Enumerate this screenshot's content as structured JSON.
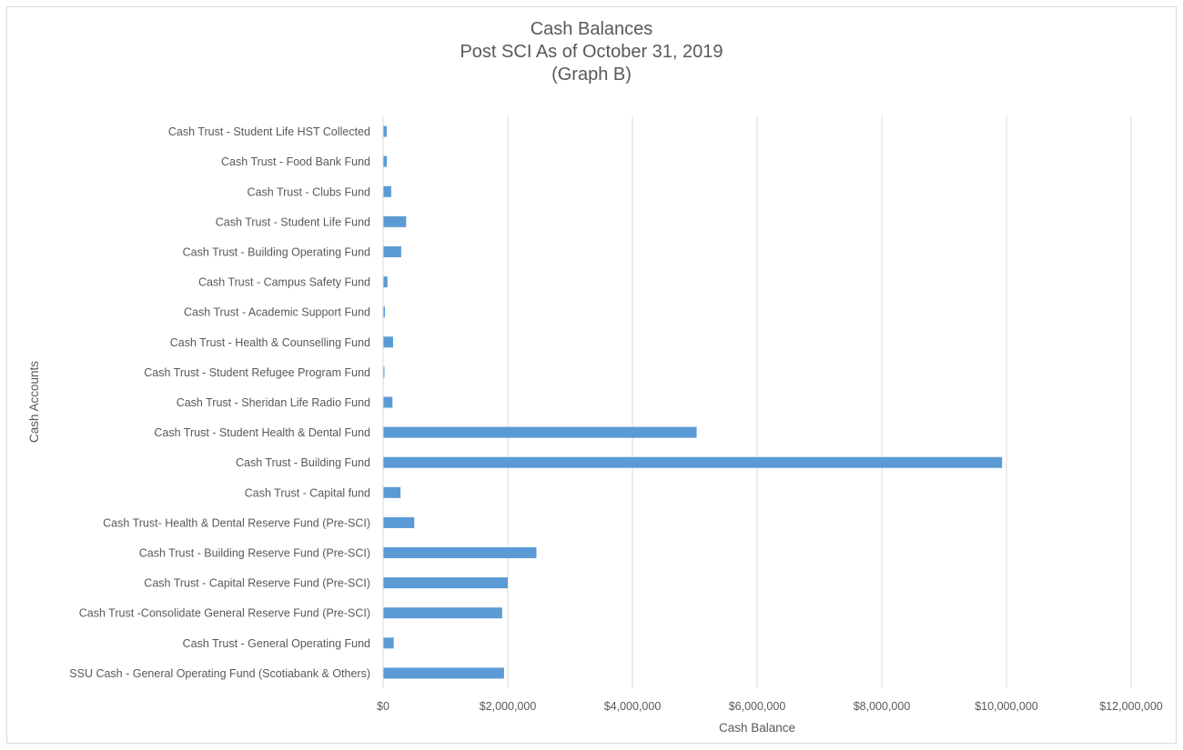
{
  "chart_data": {
    "type": "bar",
    "orientation": "horizontal",
    "title": [
      "Cash Balances",
      "Post SCI As of October 31, 2019",
      "(Graph B)"
    ],
    "xlabel": "Cash Balance",
    "ylabel": "Cash Accounts",
    "xlim": [
      0,
      12000000
    ],
    "xticks": [
      0,
      2000000,
      4000000,
      6000000,
      8000000,
      10000000,
      12000000
    ],
    "xtick_labels": [
      "$0",
      "$2,000,000",
      "$4,000,000",
      "$6,000,000",
      "$8,000,000",
      "$10,000,000",
      "$12,000,000"
    ],
    "grid": "vertical",
    "bar_color": "#5b9bd5",
    "categories": [
      "Cash Trust - Student Life HST Collected",
      "Cash Trust - Food Bank Fund",
      "Cash Trust - Clubs Fund",
      "Cash Trust - Student Life Fund",
      "Cash Trust - Building Operating Fund",
      "Cash Trust - Campus Safety Fund",
      "Cash Trust - Academic Support Fund",
      "Cash Trust - Health & Counselling Fund",
      "Cash Trust - Student Refugee Program Fund",
      "Cash Trust - Sheridan Life Radio Fund",
      "Cash Trust - Student Health & Dental Fund",
      "Cash Trust - Building Fund",
      "Cash Trust - Capital fund",
      "Cash Trust- Health & Dental Reserve Fund (Pre-SCI)",
      "Cash Trust - Building Reserve Fund (Pre-SCI)",
      "Cash Trust - Capital Reserve Fund (Pre-SCI)",
      "Cash Trust -Consolidate General Reserve Fund (Pre-SCI)",
      "Cash Trust - General Operating Fund",
      "SSU Cash - General Operating Fund (Scotiabank & Others)"
    ],
    "values": [
      60000,
      60000,
      130000,
      370000,
      290000,
      70000,
      30000,
      160000,
      20000,
      150000,
      5030000,
      9930000,
      280000,
      500000,
      2460000,
      2000000,
      1910000,
      170000,
      1940000
    ]
  }
}
